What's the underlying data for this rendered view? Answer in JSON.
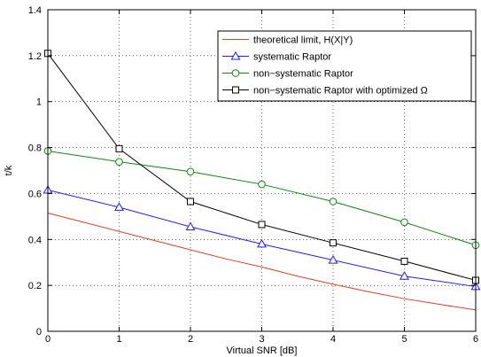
{
  "chart_data": {
    "type": "line",
    "xlabel": "Virtual SNR [dB]",
    "ylabel": "t/k",
    "xlim": [
      0,
      6
    ],
    "ylim": [
      0,
      1.4
    ],
    "xticks": [
      0,
      1,
      2,
      3,
      4,
      5,
      6
    ],
    "yticks": [
      0,
      0.2,
      0.4,
      0.6,
      0.8,
      1,
      1.2,
      1.4
    ],
    "x_tick_labels": [
      "0",
      "1",
      "2",
      "3",
      "4",
      "5",
      "6"
    ],
    "y_tick_labels": [
      "0",
      "0.2",
      "0.4",
      "0.6",
      "0.8",
      "1",
      "1.2",
      "1.4"
    ],
    "grid": "dotted",
    "legend_position": "top-right",
    "series": [
      {
        "name": "theoretical limit, H(X|Y)",
        "color": "#e0401a",
        "marker": "none",
        "x": [
          0,
          0.5,
          1,
          1.5,
          2,
          2.5,
          3,
          3.5,
          4,
          4.5,
          5,
          5.5,
          6
        ],
        "values": [
          0.515,
          0.475,
          0.435,
          0.395,
          0.355,
          0.315,
          0.28,
          0.24,
          0.205,
          0.172,
          0.142,
          0.117,
          0.093
        ]
      },
      {
        "name": "systematic Raptor",
        "color": "#1f1fff",
        "marker": "triangle",
        "x": [
          0,
          1,
          2,
          3,
          4,
          5,
          6
        ],
        "values": [
          0.615,
          0.54,
          0.455,
          0.38,
          0.31,
          0.24,
          0.195
        ]
      },
      {
        "name": "non−systematic Raptor",
        "color": "#0a8a0a",
        "marker": "circle",
        "x": [
          0,
          1,
          2,
          3,
          4,
          5,
          6
        ],
        "values": [
          0.785,
          0.738,
          0.695,
          0.64,
          0.565,
          0.475,
          0.375
        ]
      },
      {
        "name": "non−systematic Raptor with optimized Ω",
        "color": "#000000",
        "marker": "square",
        "x": [
          0,
          1,
          2,
          3,
          4,
          5,
          6
        ],
        "values": [
          1.21,
          0.795,
          0.565,
          0.465,
          0.385,
          0.305,
          0.222
        ]
      }
    ]
  }
}
